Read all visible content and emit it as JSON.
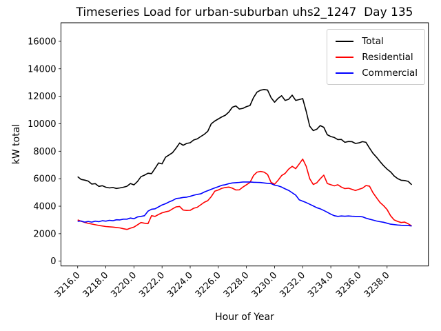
{
  "figure": {
    "background": "#ffffff"
  },
  "chart_data": {
    "type": "line",
    "title": "Timeseries Load for urban-suburban uhs2_1247  Day 135",
    "xlabel": "Hour of Year",
    "ylabel": "kW total",
    "grid": false,
    "legend": {
      "position": "upper right"
    },
    "xlim": [
      3214.8125,
      3240.9375
    ],
    "ylim": [
      -350,
      17350
    ],
    "xticks": {
      "values": [
        3216,
        3218,
        3220,
        3222,
        3224,
        3226,
        3228,
        3230,
        3232,
        3234,
        3236,
        3238
      ],
      "labels": [
        "3216.0",
        "3218.0",
        "3220.0",
        "3222.0",
        "3224.0",
        "3226.0",
        "3228.0",
        "3230.0",
        "3232.0",
        "3234.0",
        "3236.0",
        "3238.0"
      ]
    },
    "yticks": {
      "values": [
        0,
        2000,
        4000,
        6000,
        8000,
        10000,
        12000,
        14000,
        16000
      ],
      "labels": [
        "0",
        "2000",
        "4000",
        "6000",
        "8000",
        "10000",
        "12000",
        "14000",
        "16000"
      ]
    },
    "x": [
      3216.0,
      3216.25,
      3216.5,
      3216.75,
      3217.0,
      3217.25,
      3217.5,
      3217.75,
      3218.0,
      3218.25,
      3218.5,
      3218.75,
      3219.0,
      3219.25,
      3219.5,
      3219.75,
      3220.0,
      3220.25,
      3220.5,
      3220.75,
      3221.0,
      3221.25,
      3221.5,
      3221.75,
      3222.0,
      3222.25,
      3222.5,
      3222.75,
      3223.0,
      3223.25,
      3223.5,
      3223.75,
      3224.0,
      3224.25,
      3224.5,
      3224.75,
      3225.0,
      3225.25,
      3225.5,
      3225.75,
      3226.0,
      3226.25,
      3226.5,
      3226.75,
      3227.0,
      3227.25,
      3227.5,
      3227.75,
      3228.0,
      3228.25,
      3228.5,
      3228.75,
      3229.0,
      3229.25,
      3229.5,
      3229.75,
      3230.0,
      3230.25,
      3230.5,
      3230.75,
      3231.0,
      3231.25,
      3231.5,
      3231.75,
      3232.0,
      3232.25,
      3232.5,
      3232.75,
      3233.0,
      3233.25,
      3233.5,
      3233.75,
      3234.0,
      3234.25,
      3234.5,
      3234.75,
      3235.0,
      3235.25,
      3235.5,
      3235.75,
      3236.0,
      3236.25,
      3236.5,
      3236.75,
      3237.0,
      3237.25,
      3237.5,
      3237.75,
      3238.0,
      3238.25,
      3238.5,
      3238.75,
      3239.0,
      3239.25,
      3239.5,
      3239.75
    ],
    "series": [
      {
        "name": "Total",
        "color": "#000000",
        "values": [
          6150,
          5950,
          5900,
          5830,
          5610,
          5640,
          5440,
          5490,
          5380,
          5330,
          5360,
          5290,
          5330,
          5380,
          5450,
          5650,
          5550,
          5800,
          6150,
          6260,
          6400,
          6370,
          6750,
          7150,
          7080,
          7570,
          7730,
          7900,
          8230,
          8600,
          8430,
          8570,
          8620,
          8820,
          8900,
          9070,
          9230,
          9450,
          10000,
          10200,
          10350,
          10500,
          10620,
          10850,
          11200,
          11300,
          11070,
          11120,
          11250,
          11330,
          11900,
          12300,
          12440,
          12490,
          12450,
          11900,
          11570,
          11850,
          12040,
          11700,
          11780,
          12080,
          11700,
          11760,
          11830,
          10900,
          9820,
          9500,
          9600,
          9870,
          9740,
          9200,
          9070,
          9000,
          8850,
          8860,
          8650,
          8710,
          8700,
          8570,
          8610,
          8700,
          8650,
          8230,
          7850,
          7570,
          7250,
          6950,
          6700,
          6500,
          6200,
          6010,
          5890,
          5870,
          5810,
          5560
        ]
      },
      {
        "name": "Residential",
        "color": "#ff0000",
        "values": [
          3000,
          2900,
          2820,
          2750,
          2700,
          2650,
          2600,
          2560,
          2520,
          2500,
          2480,
          2450,
          2420,
          2360,
          2310,
          2400,
          2480,
          2640,
          2810,
          2760,
          2730,
          3310,
          3260,
          3400,
          3520,
          3590,
          3650,
          3810,
          3950,
          3980,
          3720,
          3690,
          3700,
          3850,
          3920,
          4100,
          4280,
          4400,
          4700,
          5090,
          5180,
          5300,
          5360,
          5390,
          5310,
          5180,
          5190,
          5390,
          5560,
          5730,
          6230,
          6480,
          6530,
          6480,
          6310,
          5730,
          5600,
          5890,
          6230,
          6390,
          6700,
          6900,
          6730,
          7070,
          7430,
          6900,
          6000,
          5580,
          5700,
          6000,
          6260,
          5650,
          5560,
          5480,
          5560,
          5390,
          5280,
          5310,
          5230,
          5140,
          5230,
          5310,
          5500,
          5460,
          4980,
          4620,
          4270,
          4040,
          3760,
          3310,
          3000,
          2890,
          2810,
          2840,
          2720,
          2560
        ]
      },
      {
        "name": "Commercial",
        "color": "#0000ff",
        "values": [
          2900,
          2920,
          2840,
          2890,
          2840,
          2910,
          2870,
          2940,
          2910,
          2970,
          2940,
          3010,
          3000,
          3060,
          3060,
          3140,
          3090,
          3220,
          3260,
          3310,
          3640,
          3780,
          3810,
          3950,
          4090,
          4180,
          4310,
          4420,
          4560,
          4590,
          4640,
          4660,
          4720,
          4800,
          4860,
          4900,
          5030,
          5130,
          5230,
          5330,
          5420,
          5520,
          5560,
          5640,
          5690,
          5710,
          5730,
          5760,
          5760,
          5760,
          5740,
          5730,
          5720,
          5690,
          5660,
          5640,
          5530,
          5480,
          5390,
          5260,
          5150,
          4980,
          4810,
          4470,
          4360,
          4260,
          4140,
          4020,
          3890,
          3810,
          3690,
          3560,
          3420,
          3310,
          3260,
          3290,
          3270,
          3290,
          3270,
          3260,
          3260,
          3230,
          3130,
          3060,
          2990,
          2920,
          2870,
          2830,
          2760,
          2690,
          2660,
          2630,
          2610,
          2600,
          2590,
          2560
        ]
      }
    ]
  }
}
